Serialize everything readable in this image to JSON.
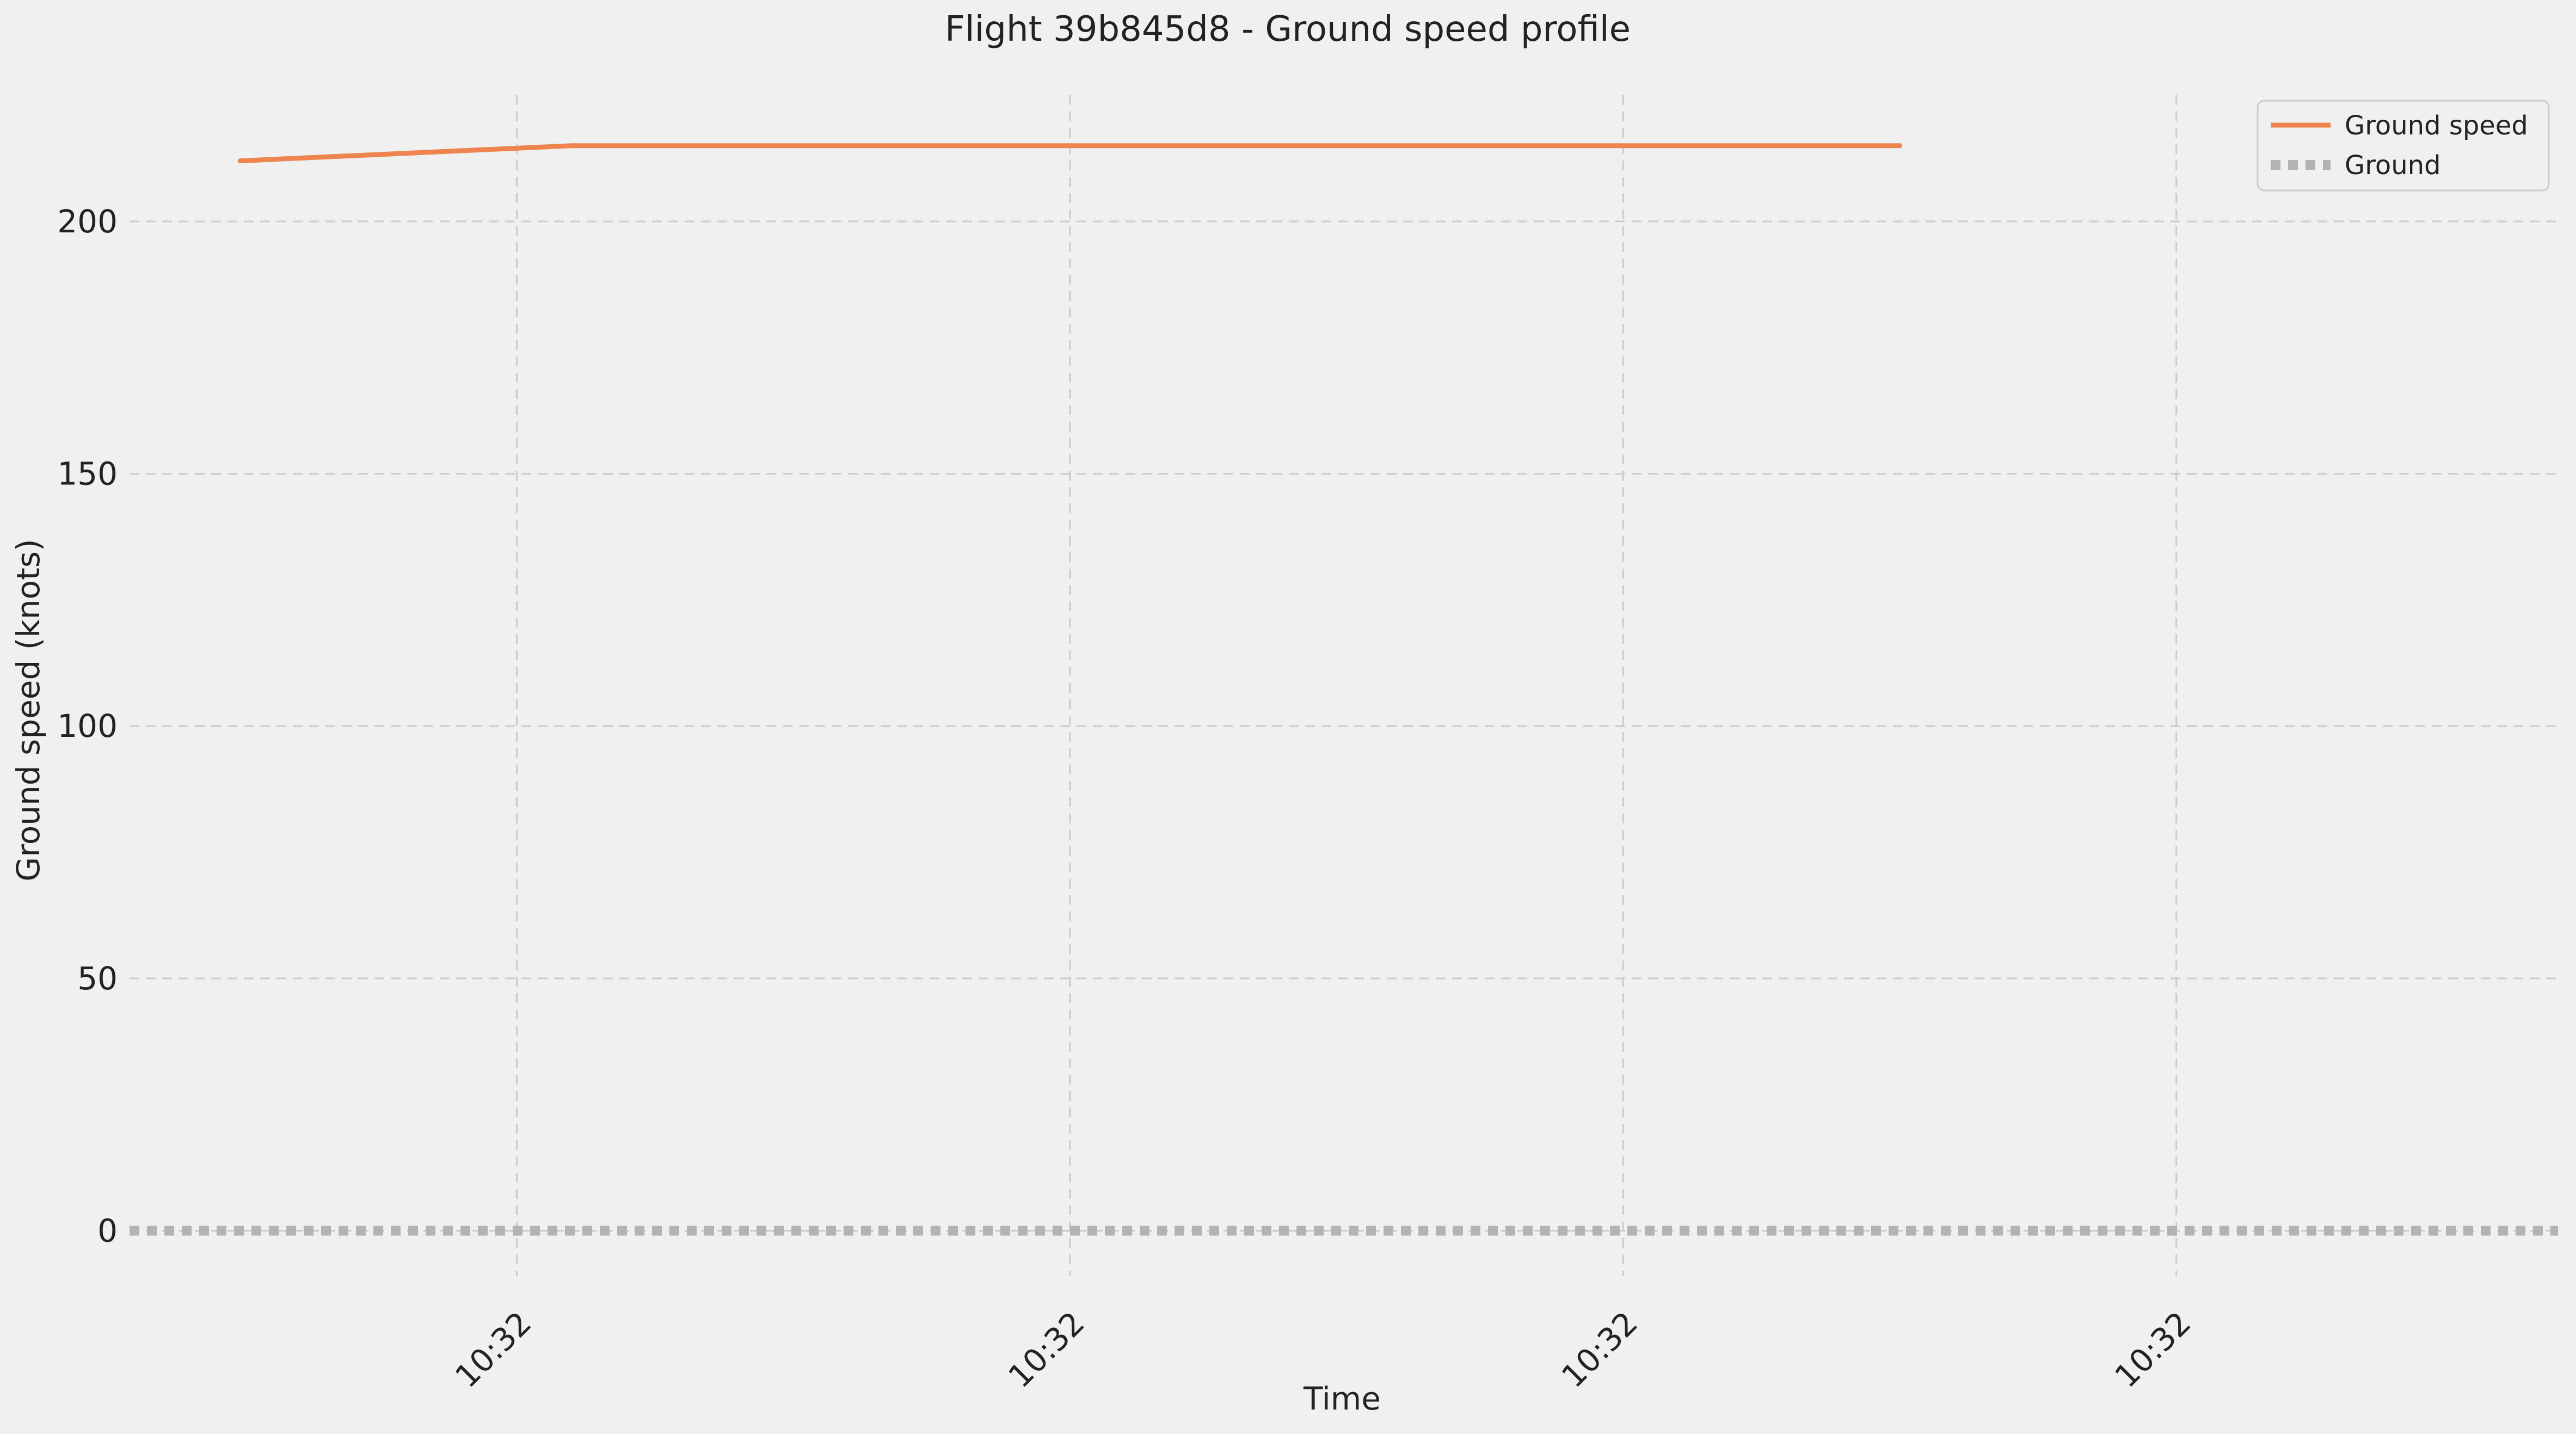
{
  "chart_data": {
    "type": "line",
    "title": "Flight 39b845d8 - Ground speed profile",
    "xlabel": "Time",
    "ylabel": "Ground speed (knots)",
    "x_tick_labels": [
      "10:32",
      "10:32",
      "10:32",
      "10:32"
    ],
    "y_ticks": [
      0,
      50,
      100,
      150,
      200
    ],
    "ylim": [
      -9,
      225
    ],
    "grid": true,
    "legend_position": "top-right",
    "series": [
      {
        "name": "Ground speed",
        "color": "#ee8550",
        "style": "solid",
        "x": [
          0.0,
          0.3,
          0.6,
          0.9,
          1.2,
          1.5,
          1.8,
          2.1,
          2.4,
          2.7,
          3.0
        ],
        "y": [
          212,
          213.5,
          215,
          215,
          215,
          215,
          215,
          215,
          215,
          215,
          215
        ]
      },
      {
        "name": "Ground",
        "color": "#b3b3b3",
        "style": "dotted",
        "y_constant": 0
      }
    ]
  }
}
